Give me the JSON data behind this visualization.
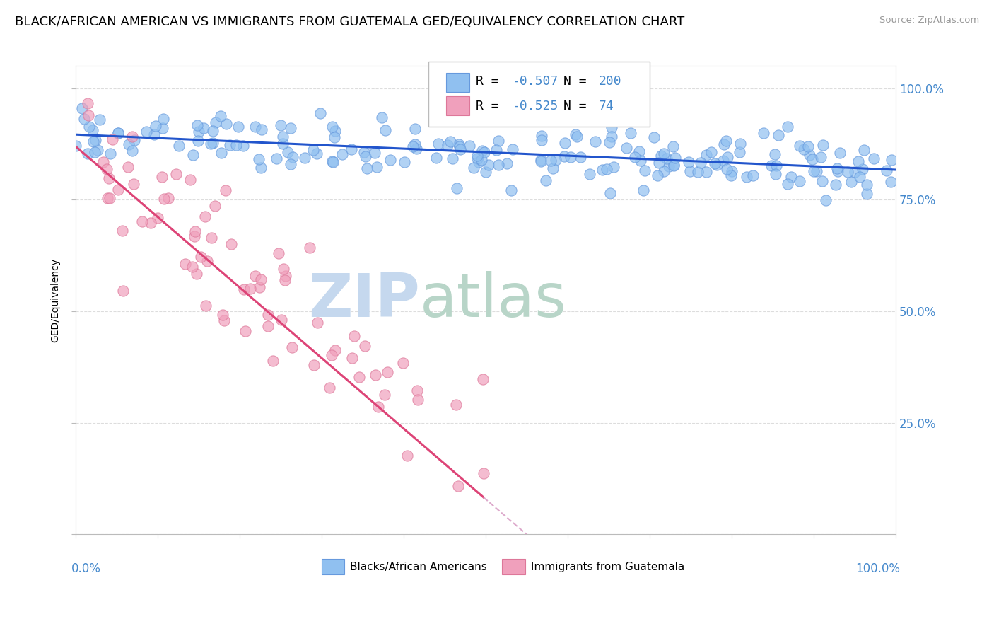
{
  "title": "BLACK/AFRICAN AMERICAN VS IMMIGRANTS FROM GUATEMALA GED/EQUIVALENCY CORRELATION CHART",
  "source": "Source: ZipAtlas.com",
  "ylabel": "GED/Equivalency",
  "legend_label1": "Blacks/African Americans",
  "legend_label2": "Immigrants from Guatemala",
  "R1": -0.507,
  "N1": 200,
  "R2": -0.525,
  "N2": 74,
  "blue_dot_color": "#90C0F0",
  "pink_dot_color": "#F0A0BC",
  "blue_line_color": "#2255CC",
  "pink_line_color": "#DD4477",
  "pink_dash_color": "#DDAACC",
  "background_color": "#FFFFFF",
  "grid_color": "#DDDDDD",
  "watermark_zip": "ZIP",
  "watermark_atlas": "atlas",
  "watermark_color_zip": "#C5D8EE",
  "watermark_color_atlas": "#B8D5C8",
  "title_fontsize": 13,
  "axis_label_fontsize": 10,
  "right_ytick_color": "#4488CC",
  "legend_box_color": "#AAAAAA"
}
